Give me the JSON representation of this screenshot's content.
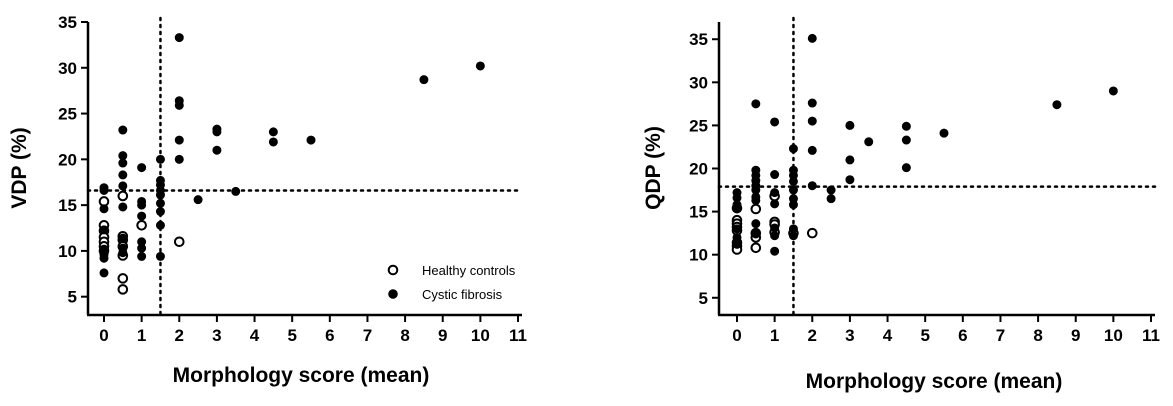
{
  "chart_data": [
    {
      "type": "scatter",
      "title": "",
      "xlabel": "Morphology score (mean)",
      "ylabel": "VDP (%)",
      "xlim": [
        0,
        11
      ],
      "ylim": [
        3,
        35
      ],
      "xticks": [
        0,
        1,
        2,
        3,
        4,
        5,
        6,
        7,
        8,
        9,
        10,
        11
      ],
      "yticks": [
        5,
        10,
        15,
        20,
        25,
        30,
        35
      ],
      "threshold_x": 1.5,
      "threshold_y": 16.6,
      "grid": false,
      "legend": {
        "placement": "bottom-right",
        "entries": [
          {
            "name": "Healthy controls",
            "marker": "open-circle"
          },
          {
            "name": "Cystic fibrosis",
            "marker": "filled-circle"
          }
        ]
      },
      "series": [
        {
          "name": "Healthy controls",
          "marker": "open",
          "points": [
            [
              0,
              15.4
            ],
            [
              0,
              12.8
            ],
            [
              0,
              12.2
            ],
            [
              0,
              11.5
            ],
            [
              0,
              11.0
            ],
            [
              0,
              10.5
            ],
            [
              0,
              10.0
            ],
            [
              0.5,
              16.0
            ],
            [
              0.5,
              11.6
            ],
            [
              0.5,
              11.2
            ],
            [
              0.5,
              10.5
            ],
            [
              0.5,
              9.5
            ],
            [
              0.5,
              7.0
            ],
            [
              0.5,
              5.8
            ],
            [
              1,
              12.8
            ],
            [
              2,
              11.0
            ]
          ]
        },
        {
          "name": "Cystic fibrosis",
          "marker": "filled",
          "points": [
            [
              0,
              16.9
            ],
            [
              0,
              16.6
            ],
            [
              0,
              14.6
            ],
            [
              0,
              12.3
            ],
            [
              0,
              10.2
            ],
            [
              0,
              9.6
            ],
            [
              0,
              9.2
            ],
            [
              0,
              7.6
            ],
            [
              0.5,
              23.2
            ],
            [
              0.5,
              20.4
            ],
            [
              0.5,
              19.6
            ],
            [
              0.5,
              18.3
            ],
            [
              0.5,
              17.1
            ],
            [
              0.5,
              14.8
            ],
            [
              0.5,
              11.4
            ],
            [
              0.5,
              10.3
            ],
            [
              0.5,
              9.8
            ],
            [
              1,
              19.1
            ],
            [
              1,
              15.4
            ],
            [
              1,
              15.0
            ],
            [
              1,
              13.8
            ],
            [
              1,
              11.0
            ],
            [
              1,
              10.3
            ],
            [
              1,
              9.4
            ],
            [
              1.5,
              20.0
            ],
            [
              1.5,
              17.7
            ],
            [
              1.5,
              17.2
            ],
            [
              1.5,
              16.6
            ],
            [
              1.5,
              16.1
            ],
            [
              1.5,
              15.2
            ],
            [
              1.5,
              14.3
            ],
            [
              1.5,
              12.8
            ],
            [
              1.5,
              9.4
            ],
            [
              2,
              33.3
            ],
            [
              2,
              26.4
            ],
            [
              2,
              25.9
            ],
            [
              2,
              22.1
            ],
            [
              2,
              20.0
            ],
            [
              2.5,
              15.6
            ],
            [
              3,
              23.3
            ],
            [
              3,
              23.0
            ],
            [
              3,
              21.0
            ],
            [
              3.5,
              16.5
            ],
            [
              4.5,
              23.0
            ],
            [
              4.5,
              21.9
            ],
            [
              5.5,
              22.1
            ],
            [
              8.5,
              28.7
            ],
            [
              10,
              30.2
            ]
          ]
        }
      ]
    },
    {
      "type": "scatter",
      "title": "",
      "xlabel": "Morphology score (mean)",
      "ylabel": "QDP (%)",
      "xlim": [
        0,
        11
      ],
      "ylim": [
        3,
        37
      ],
      "xticks": [
        0,
        1,
        2,
        3,
        4,
        5,
        6,
        7,
        8,
        9,
        10,
        11
      ],
      "yticks": [
        5,
        10,
        15,
        20,
        25,
        30,
        35
      ],
      "threshold_x": 1.5,
      "threshold_y": 17.9,
      "grid": false,
      "series": [
        {
          "name": "Healthy controls",
          "marker": "open",
          "points": [
            [
              0,
              15.4
            ],
            [
              0,
              14.0
            ],
            [
              0,
              13.6
            ],
            [
              0,
              13.2
            ],
            [
              0,
              12.8
            ],
            [
              0,
              11.4
            ],
            [
              0,
              11.0
            ],
            [
              0,
              10.6
            ],
            [
              0.5,
              15.3
            ],
            [
              0.5,
              12.5
            ],
            [
              0.5,
              12.0
            ],
            [
              0.5,
              10.8
            ],
            [
              1,
              16.8
            ],
            [
              1,
              13.8
            ],
            [
              1,
              13.5
            ],
            [
              1,
              12.6
            ],
            [
              1.5,
              12.5
            ],
            [
              2,
              12.5
            ]
          ]
        },
        {
          "name": "Cystic fibrosis",
          "marker": "filled",
          "points": [
            [
              0,
              17.2
            ],
            [
              0,
              16.6
            ],
            [
              0,
              15.8
            ],
            [
              0,
              15.4
            ],
            [
              0,
              13.0
            ],
            [
              0,
              12.0
            ],
            [
              0,
              11.2
            ],
            [
              0.5,
              27.5
            ],
            [
              0.5,
              19.8
            ],
            [
              0.5,
              19.2
            ],
            [
              0.5,
              18.6
            ],
            [
              0.5,
              18.0
            ],
            [
              0.5,
              17.5
            ],
            [
              0.5,
              16.7
            ],
            [
              0.5,
              16.3
            ],
            [
              0.5,
              13.6
            ],
            [
              0.5,
              12.4
            ],
            [
              1,
              25.4
            ],
            [
              1,
              19.3
            ],
            [
              1,
              17.2
            ],
            [
              1,
              15.9
            ],
            [
              1,
              13.1
            ],
            [
              1,
              12.2
            ],
            [
              1,
              10.4
            ],
            [
              1.5,
              22.3
            ],
            [
              1.5,
              19.8
            ],
            [
              1.5,
              19.2
            ],
            [
              1.5,
              18.5
            ],
            [
              1.5,
              17.5
            ],
            [
              1.5,
              16.5
            ],
            [
              1.5,
              15.8
            ],
            [
              1.5,
              13.0
            ],
            [
              1.5,
              12.2
            ],
            [
              2,
              35.1
            ],
            [
              2,
              27.6
            ],
            [
              2,
              25.5
            ],
            [
              2,
              22.1
            ],
            [
              2,
              18.0
            ],
            [
              2.5,
              17.5
            ],
            [
              2.5,
              16.5
            ],
            [
              3,
              25.0
            ],
            [
              3,
              21.0
            ],
            [
              3,
              18.7
            ],
            [
              3.5,
              23.1
            ],
            [
              4.5,
              24.9
            ],
            [
              4.5,
              23.3
            ],
            [
              4.5,
              20.1
            ],
            [
              5.5,
              24.1
            ],
            [
              8.5,
              27.4
            ],
            [
              10,
              29.0
            ]
          ]
        }
      ]
    }
  ]
}
